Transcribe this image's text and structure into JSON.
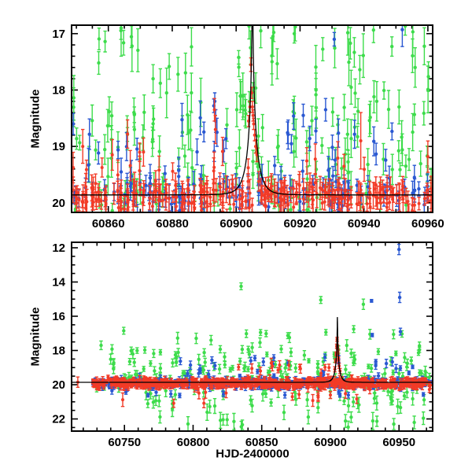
{
  "figure": {
    "background": "#ffffff"
  },
  "colors": {
    "green": "#3ddc4b",
    "blue": "#2a58d2",
    "red": "#f23b27",
    "model": "#000000",
    "axis": "#000000"
  },
  "render_seed": 7,
  "chart_data": [
    {
      "id": "top",
      "type": "scatter",
      "title": "",
      "xlabel": "",
      "ylabel": "Magnitude",
      "x_range": [
        60848.5,
        60961.5
      ],
      "y_range_mag": [
        16.85,
        20.17
      ],
      "y_inverted": true,
      "x_major_ticks": [
        60860,
        60880,
        60900,
        60920,
        60940,
        60960
      ],
      "x_tick_labels": [
        "60860",
        "60880",
        "60900",
        "60920",
        "60940",
        "60960"
      ],
      "x_minor_step": 5,
      "y_major_ticks": [
        17,
        18,
        19,
        20
      ],
      "y_tick_labels": [
        "17",
        "18",
        "19",
        "20"
      ],
      "y_minor_step": 0.2,
      "grid": false,
      "model_curve": {
        "type": "paczynski-microlensing",
        "baseline_mag": 19.86,
        "t0": 60905.1,
        "tE": 3.0,
        "u0": 0.03
      },
      "series": [
        {
          "name": "green-band",
          "color": "green",
          "clusters": [
            {
              "n": 55,
              "x": [
                60849,
                60961
              ],
              "mag": [
                19.5,
                20.15
              ],
              "err": [
                0.12,
                0.3
              ]
            },
            {
              "n": 95,
              "x": [
                60849,
                60961
              ],
              "mag": [
                18.3,
                19.62
              ],
              "err": [
                0.12,
                0.35
              ]
            },
            {
              "n": 46,
              "x": [
                60849,
                60961
              ],
              "mag": [
                16.86,
                18.3
              ],
              "err": [
                0.15,
                0.45
              ]
            }
          ],
          "points": [
            [
              60857,
              17.52,
              0.2
            ],
            [
              60864,
              16.9,
              0.5
            ],
            [
              60867.4,
              17.22,
              0.45
            ],
            [
              60874,
              17.8,
              0.25
            ],
            [
              60881.8,
              17.72,
              0.3
            ],
            [
              60886,
              18.05,
              0.35
            ],
            [
              60900.2,
              18.35,
              0.3
            ],
            [
              60900.8,
              17.42,
              0.12
            ],
            [
              60901.5,
              18.1,
              0.25
            ],
            [
              60902.2,
              18.28,
              0.2
            ],
            [
              60903,
              18.42,
              0.25
            ],
            [
              60904.5,
              17.25,
              0.3
            ],
            [
              60907.7,
              16.95,
              0.3
            ],
            [
              60911.5,
              17.05,
              0.35
            ],
            [
              60918.5,
              16.88,
              0.25
            ],
            [
              60925,
              18.0,
              0.3
            ],
            [
              60936,
              17.95,
              0.3
            ],
            [
              60944,
              18.2,
              0.35
            ],
            [
              60951,
              18.3,
              0.3
            ],
            [
              60956,
              17.6,
              0.35
            ]
          ]
        },
        {
          "name": "blue-band",
          "color": "blue",
          "clusters": [
            {
              "n": 120,
              "x": [
                60849,
                60961
              ],
              "mag_gauss": [
                19.85,
                0.15
              ],
              "err": [
                0.1,
                0.25
              ]
            },
            {
              "n": 40,
              "x": [
                60849,
                60961
              ],
              "mag": [
                18.4,
                19.7
              ],
              "err": [
                0.12,
                0.3
              ]
            }
          ],
          "points": [
            [
              60893,
              18.28,
              0.12
            ],
            [
              60893.3,
              18.2,
              0.15
            ],
            [
              60893.6,
              18.55,
              0.2
            ],
            [
              60894,
              18.75,
              0.25
            ],
            [
              60921,
              18.45,
              0.2
            ],
            [
              60928,
              18.35,
              0.2
            ],
            [
              60930.7,
              17.1,
              0.12
            ],
            [
              60952,
              16.93,
              0.3
            ]
          ]
        },
        {
          "name": "red-band",
          "color": "red",
          "clusters": [
            {
              "n": 270,
              "x": [
                60849,
                60961
              ],
              "mag_gauss": [
                19.88,
                0.12
              ],
              "err": [
                0.1,
                0.25
              ]
            },
            {
              "n": 20,
              "x": [
                60849,
                60961
              ],
              "mag": [
                19.05,
                19.6
              ],
              "err": [
                0.15,
                0.3
              ]
            }
          ],
          "points": [
            [
              60852,
              19.0,
              0.3
            ],
            [
              60866,
              18.78,
              0.25
            ],
            [
              60871,
              19.1,
              0.25
            ],
            [
              60893.2,
              18.35,
              0.2
            ],
            [
              60893.5,
              18.7,
              0.25
            ],
            [
              60939,
              18.9,
              0.5
            ],
            [
              60903.9,
              18.55,
              0.1
            ],
            [
              60904.3,
              18.3,
              0.1
            ],
            [
              60904.6,
              17.55,
              0.12
            ],
            [
              60904.9,
              18.05,
              0.1
            ],
            [
              60905.1,
              18.3,
              0.1
            ],
            [
              60905.3,
              18.45,
              0.1
            ],
            [
              60905.5,
              18.6,
              0.1
            ],
            [
              60905.8,
              18.8,
              0.1
            ],
            [
              60906.1,
              19.0,
              0.12
            ],
            [
              60906.5,
              19.15,
              0.12
            ]
          ]
        }
      ]
    },
    {
      "id": "bottom",
      "type": "scatter",
      "title": "",
      "xlabel": "HJD-2400000",
      "ylabel": "Magnitude",
      "x_range": [
        60711.5,
        60974.5
      ],
      "y_range_mag": [
        11.68,
        22.71
      ],
      "y_inverted": true,
      "x_major_ticks": [
        60750,
        60800,
        60850,
        60900,
        60950
      ],
      "x_tick_labels": [
        "60750",
        "60800",
        "60850",
        "60900",
        "60950"
      ],
      "x_minor_step": 10,
      "y_major_ticks": [
        12,
        14,
        16,
        18,
        20,
        22
      ],
      "y_tick_labels": [
        "12",
        "14",
        "16",
        "18",
        "20",
        "22"
      ],
      "y_minor_step": 0.5,
      "grid": false,
      "model_curve": {
        "type": "paczynski-microlensing",
        "baseline_mag": 19.86,
        "t0": 60905.1,
        "tE": 3.0,
        "u0": 0.03
      },
      "series": [
        {
          "name": "green-band",
          "color": "green",
          "clusters": [
            {
              "n": 50,
              "x": [
                60727,
                60973
              ],
              "mag": [
                19.5,
                20.2
              ],
              "err": [
                0.12,
                0.3
              ]
            },
            {
              "n": 110,
              "x": [
                60740,
                60973
              ],
              "mag": [
                17.9,
                19.7
              ],
              "err": [
                0.12,
                0.3
              ]
            },
            {
              "n": 48,
              "x": [
                60765,
                60973
              ],
              "mag": [
                20.25,
                21.3
              ],
              "err": [
                0.2,
                0.45
              ]
            },
            {
              "n": 22,
              "x": [
                60770,
                60970
              ],
              "mag": [
                21.3,
                22.55
              ],
              "err": [
                0.25,
                0.5
              ]
            },
            {
              "n": 16,
              "x": [
                60745,
                60970
              ],
              "mag": [
                16.9,
                17.9
              ],
              "err": [
                0.15,
                0.35
              ]
            }
          ],
          "points": [
            [
              60749.5,
              16.85,
              0.2
            ],
            [
              60733,
              17.7,
              0.25
            ],
            [
              60835,
              14.25,
              0.2
            ],
            [
              60893,
              15.05,
              0.2
            ],
            [
              60917,
              16.75,
              0.2
            ],
            [
              60924,
              15.3,
              0.3
            ]
          ]
        },
        {
          "name": "blue-band",
          "color": "blue",
          "clusters": [
            {
              "n": 300,
              "x": [
                60727,
                60973
              ],
              "mag_gauss": [
                19.9,
                0.14
              ],
              "err": [
                0.08,
                0.22
              ]
            },
            {
              "n": 26,
              "x": [
                60790,
                60970
              ],
              "mag": [
                18.3,
                19.5
              ],
              "err": [
                0.1,
                0.25
              ]
            },
            {
              "n": 12,
              "x": [
                60730,
                60970
              ],
              "mag": [
                20.3,
                20.65
              ],
              "err": [
                0.1,
                0.2
              ]
            }
          ],
          "points": [
            [
              60845,
              18.45,
              0.15
            ],
            [
              60842,
              18.6,
              0.2
            ],
            [
              60930,
              15.1,
              0.08
            ],
            [
              60930.5,
              17.1,
              0.1
            ],
            [
              60950,
              12.1,
              0.3
            ],
            [
              60950.5,
              14.9,
              0.3
            ],
            [
              60951,
              16.9,
              0.2
            ],
            [
              60906,
              18.5,
              0.2
            ],
            [
              60896,
              18.4,
              0.2
            ]
          ]
        },
        {
          "name": "red-band",
          "color": "red",
          "clusters": [
            {
              "n": 620,
              "x": [
                60727,
                60973
              ],
              "mag_gauss": [
                19.92,
                0.12
              ],
              "err": [
                0.08,
                0.25
              ]
            },
            {
              "n": 14,
              "x": [
                60740,
                60920
              ],
              "mag": [
                20.4,
                21.1
              ],
              "err": [
                0.2,
                0.4
              ]
            },
            {
              "n": 10,
              "x": [
                60830,
                60900
              ],
              "mag": [
                18.8,
                19.4
              ],
              "err": [
                0.15,
                0.3
              ]
            }
          ],
          "points": [
            [
              60716,
              19.85,
              0.3
            ],
            [
              60857,
              18.75,
              0.3
            ],
            [
              60863,
              18.85,
              0.25
            ],
            [
              60899,
              19.0,
              0.2
            ],
            [
              60903.2,
              19.1,
              0.15
            ],
            [
              60903.8,
              18.6,
              0.12
            ],
            [
              60904.2,
              18.2,
              0.12
            ],
            [
              60904.6,
              17.75,
              0.12
            ],
            [
              60904.9,
              17.35,
              0.12
            ],
            [
              60905.2,
              17.8,
              0.12
            ],
            [
              60905.5,
              18.1,
              0.12
            ],
            [
              60905.9,
              18.5,
              0.12
            ],
            [
              60906.4,
              18.9,
              0.15
            ],
            [
              60907,
              19.2,
              0.15
            ]
          ]
        }
      ]
    }
  ]
}
